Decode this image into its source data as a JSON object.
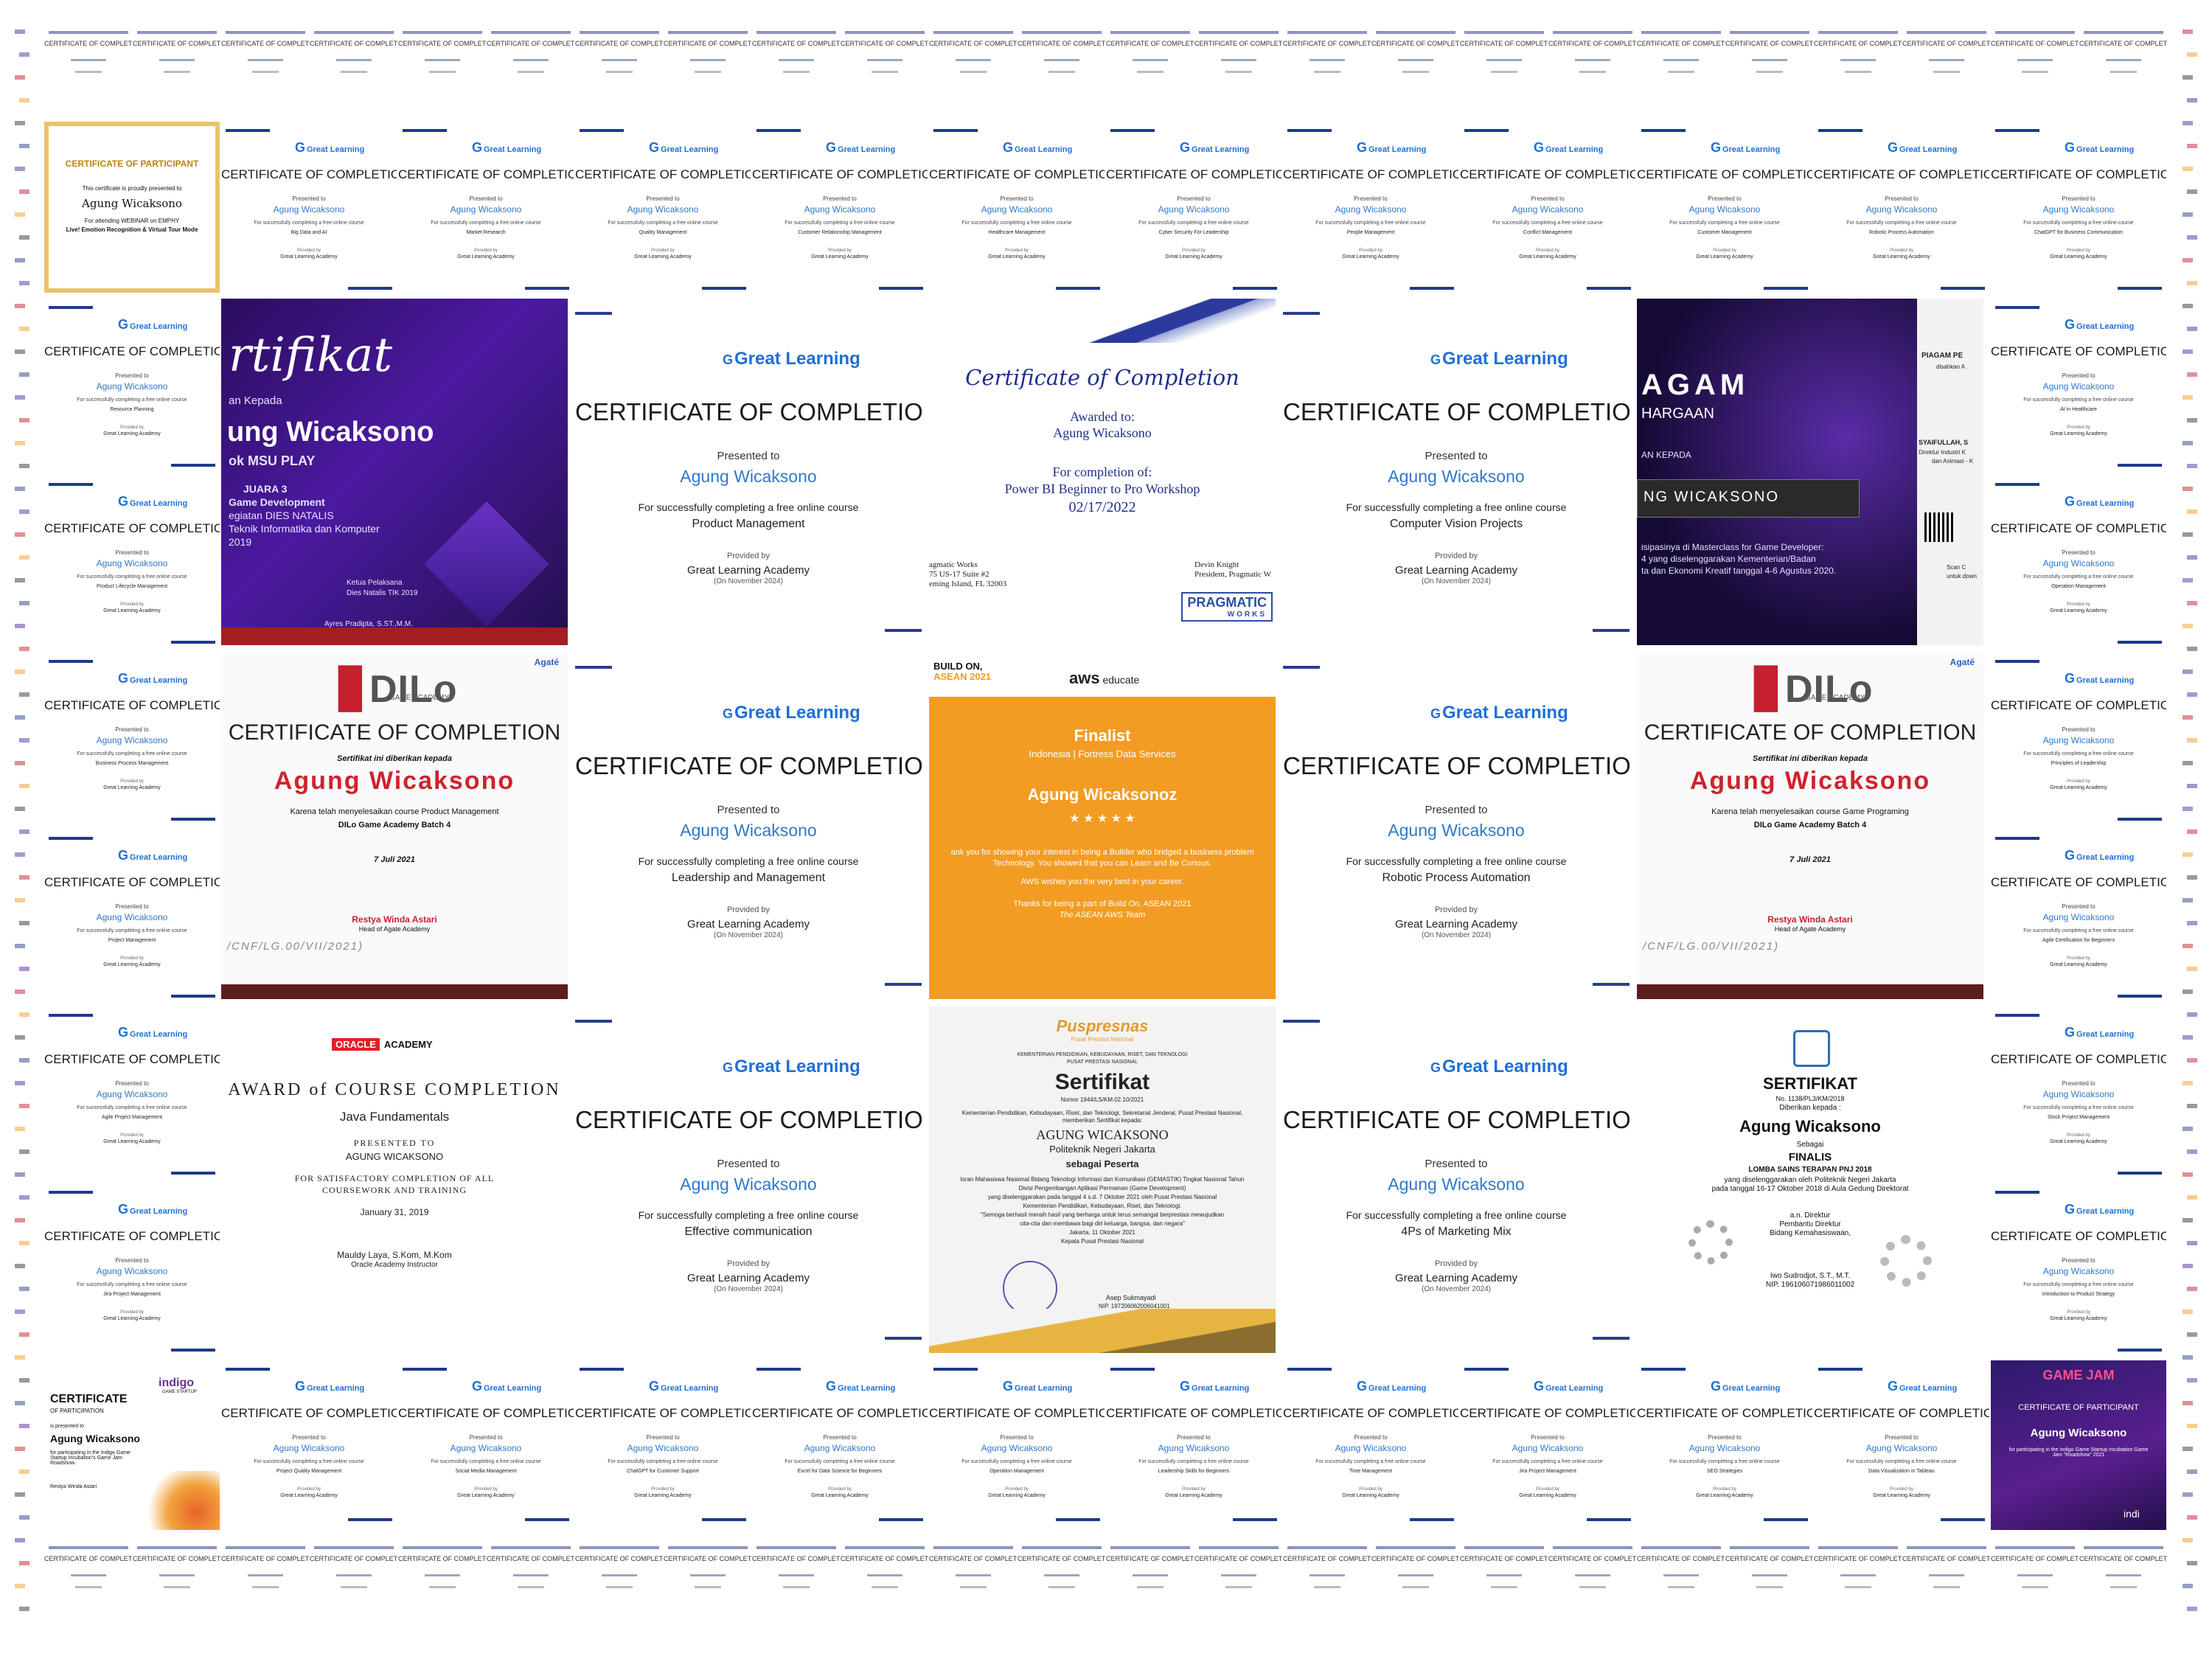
{
  "common": {
    "gl_brand": "Great Learning",
    "gl_title": "CERTIFICATE OF COMPLETION",
    "gl_presented": "Presented to",
    "gl_name": "Agung Wicaksono",
    "gl_for": "For successfully completing a free online course",
    "gl_provided": "Provided by",
    "gl_academy": "Great Learning Academy",
    "tiny_title": "CERTIFICATE OF COMPLETION"
  },
  "row1": {
    "courses": [
      "Big Data and AI",
      "Market Research",
      "Quality Management",
      "Customer Relationship Management",
      "Healthcare Management",
      "Cyber Security For Leadership",
      "People Management",
      "Conflict Management",
      "Customer Management",
      "Robotic Process Automation",
      "ChatGPT for Business Communication"
    ]
  },
  "participant_cert": {
    "title": "CERTIFICATE OF PARTICIPANT",
    "line1": "This certificate is proudly presented to",
    "name": "Agung Wicaksono",
    "line2": "For attending WEBINAR on EMPHY",
    "line3": "Live! Emotion Recognition & Virtual Tour Mode"
  },
  "left_col": {
    "courses": [
      "Resource Planning",
      "Product Lifecycle Management",
      "Business Process Management",
      "Project Management",
      "Agile Project Management",
      "Jira Project Management"
    ]
  },
  "right_col": {
    "courses": [
      "AI in Healthcare",
      "Operation Management",
      "Principles of Leadership",
      "Agile Certification for Beginners",
      "Stock Project Management",
      "Introduction to Product Strategy"
    ]
  },
  "msu_cert": {
    "script": "rtifikat",
    "given": "an Kepada",
    "name": "ung Wicaksono",
    "team": "ok MSU PLAY",
    "rank": "JUARA 3",
    "event1": "Game Development",
    "event2": "egiatan DIES NATALIS",
    "event3": "Teknik Informatika dan Komputer",
    "year": "2019",
    "sign_role": "Ketua Pelaksana",
    "sign_event": "Dies Natalis TIK 2019",
    "sign_name": "Ayres Pradipta, S.ST.,M.M."
  },
  "big_gl": {
    "product": "Product Management",
    "vision": "Computer Vision Projects",
    "leadership": "Leadership and Management",
    "rpa": "Robotic Process Automation",
    "effective": "Effective communication",
    "marketing": "4Ps of Marketing Mix",
    "date": "(On November 2024)"
  },
  "powerbi": {
    "title": "Certificate of Completion",
    "awarded": "Awarded to:",
    "name": "Agung Wicaksono",
    "completion": "For completion of:",
    "course": "Power BI Beginner to Pro Workshop",
    "date": "02/17/2022",
    "org1": "agmatic Works",
    "org2": "75 US-17 Suite #2",
    "org3": "eming Island, FL 32003",
    "signer": "Devin Knight",
    "signer_role": "President, Pragmatic W",
    "logo1": "PRAGMATIC",
    "logo2": "WORKS"
  },
  "piagam": {
    "title": "AGAM",
    "sub": "HARGAAN",
    "given": "AN KEPADA",
    "name": "NG WICAKSONO",
    "desc1": "isipasinya di Masterclass for Game Developer:",
    "desc2": "4 yang diselenggarakan Kementerian/Badan",
    "desc3": "ta dan Ekonomi Kreatif tanggal 4-6 Agustus 2020.",
    "side_title": "PIAGAM PE",
    "side_sub": "disahkan A",
    "signer": "SYAIFULLAH, S",
    "signer_role1": "Direktur Industri K",
    "signer_role2": "dan Animasi - K",
    "scan": "Scan C",
    "scan2": "untuk down"
  },
  "dilo1": {
    "logo": "DILo",
    "logo_sub": "GAME ACADEMY",
    "agate": "Agaté",
    "title": "CERTIFICATE OF COMPLETION",
    "given": "Sertifikat ini diberikan kepada",
    "name": "Agung Wicaksono",
    "course": "Karena telah menyelesaikan course Product Management",
    "batch": "DILo Game Academy Batch 4",
    "date": "7 Juli 2021",
    "signer": "Restya Winda Astari",
    "role": "Head of Agate Academy",
    "code": "/CNF/LG.00/VII/2021)"
  },
  "dilo2": {
    "course": "Karena telah menyelesaikan course Game Programing"
  },
  "aws": {
    "build1": "BUILD ON,",
    "build2": "ASEAN 2021",
    "brand": "aws",
    "brand2": "educate",
    "finalist": "Finalist",
    "track": "Indonesia | Fortress Data Services",
    "name": "Agung Wicaksonoz",
    "stars": "★ ★ ★ ★ ★",
    "l1": "ank you for showing your interest in being a Builder who bridged a business problem",
    "l2": "Technology. You showed that you can Learn and Be Curious.",
    "l3": "AWS wishes you the very best in your career.",
    "l4": "Thanks for being a part of Build On, ASEAN 2021",
    "l5": "The ASEAN AWS Team"
  },
  "oracle": {
    "logo": "ORACLE",
    "logo2": "ACADEMY",
    "award": "AWARD of COURSE COMPLETION",
    "course": "Java Fundamentals",
    "presented": "PRESENTED TO",
    "name": "AGUNG WICAKSONO",
    "satisfy1": "FOR SATISFACTORY COMPLETION OF ALL",
    "satisfy2": "COURSEWORK AND TRAINING",
    "date": "January 31, 2019",
    "signer": "Mauldy Laya, S.Kom, M.Kom",
    "role": "Oracle Academy Instructor"
  },
  "pusp": {
    "logo": "Puspresnas",
    "logo_sub": "Pusat Prestasi Nasional",
    "ministry": "KEMENTERIAN PENDIDIKAN, KEBUDAYAAN, RISET, DAN TEKNOLOGI",
    "ministry2": "PUSAT PRESTASI NASIONAL",
    "title": "Sertifikat",
    "number": "Nomor 1944/LS/KM.02.10/2021",
    "l1": "Kementerian Pendidikan, Kebudayaan, Riset, dan Teknologi, Sekretariat Jenderal, Pusat Prestasi Nasional,",
    "l2": "memberikan Sertifikat kepada:",
    "name": "AGUNG WICAKSONO",
    "school": "Politeknik Negeri Jakarta",
    "as": "sebagai Peserta",
    "e1": "loran Mahasiswa Nasional Bidang Teknologi Informasi dan Komunikasi (GEMASTIK) Tingkat Nasional Tahun",
    "e2": "Divisi Pengembangan Aplikasi Permainan (Game Development)",
    "e3": "yang diselenggarakan pada tanggal 4 s.d. 7 Oktober 2021 oleh Pusat Prestasi Nasional",
    "e4": "Kementerian Pendidikan, Kebudayaan, Riset, dan Teknologi.",
    "e5": "\"Semoga berhasil meraih hasil yang berharga untuk terus semangat berprestasi mewujudkan",
    "e6": "cita-cita dan membawa bagi diri keluarga, bangsa, dan negara\"",
    "city": "Jakarta, 11 Oktober 2021",
    "office": "Kepala Pusat Prestasi Nasional",
    "sign": "Asep Sukmayadi",
    "nip": "NIP. 197206062006041001"
  },
  "pnj": {
    "title": "SERTIFIKAT",
    "number": "No. 1138/PL3/KM/2018",
    "given": "Diberikan kepada :",
    "name": "Agung Wicaksono",
    "as": "Sebagai",
    "rank": "FINALIS",
    "event": "LOMBA SAINS TERAPAN PNJ 2018",
    "desc1": "yang diselenggarakan oleh Politeknik Negeri Jakarta",
    "desc2": "pada tanggal 16-17 Oktober 2018 di Aula Gedung Direktorat",
    "an": "a.n. Direktur",
    "pembantu": "Pembantu Direktur",
    "bidang": "Bidang Kemahasiswaan,",
    "signer": "Iwo Sudrodjot, S.T., M.T.",
    "nip": "NIP. 196106071986011002"
  },
  "indigo": {
    "title1": "CERTIFICATE",
    "title2": "OF PARTICIPATION",
    "presented": "is presented to",
    "name": "Agung Wicaksono",
    "desc": "for participating in the Indigo Game Startup Incubation's Game Jam Roadshow.",
    "logo": "indigo",
    "logo2": "GAME STARTUP",
    "signer": "Restya Winda Astari"
  },
  "gamejam": {
    "logo": "GAME JAM",
    "title": "CERTIFICATE OF PARTICIPANT",
    "name": "Agung Wicaksono",
    "desc": "for participating in the Indigo Game Startup Incubation Game Jam \"Roadshow\" 2021",
    "logo2": "indi"
  },
  "row7": {
    "courses": [
      "Project Quality Management",
      "Social Media Management",
      "ChatGPT for Customer Support",
      "Excel for Data Science for Beginners",
      "Operation Management",
      "Leadership Skills for Beginners",
      "Time Management",
      "Jira Project Management",
      "SEO Strategies",
      "Data Visualization in Tableau"
    ]
  }
}
